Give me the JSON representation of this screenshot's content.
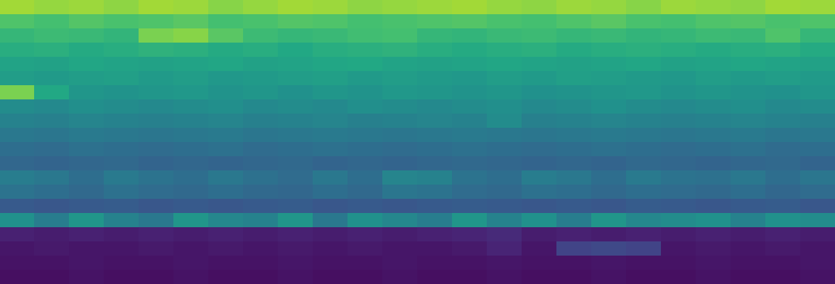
{
  "chart_data": {
    "type": "heatmap",
    "tick_labels": false,
    "color_range": [
      0,
      1
    ],
    "cells": [
      [
        0.86,
        0.84,
        0.85,
        0.83,
        0.86,
        0.85,
        0.82,
        0.84,
        0.86,
        0.85,
        0.83,
        0.84,
        0.85,
        0.86,
        0.84,
        0.83,
        0.85,
        0.84,
        0.82,
        0.85,
        0.84,
        0.83,
        0.86,
        0.85
      ],
      [
        0.72,
        0.7,
        0.73,
        0.71,
        0.72,
        0.74,
        0.7,
        0.71,
        0.73,
        0.72,
        0.7,
        0.71,
        0.72,
        0.73,
        0.71,
        0.7,
        0.72,
        0.74,
        0.71,
        0.7,
        0.72,
        0.73,
        0.71,
        0.72
      ],
      [
        0.66,
        0.68,
        0.67,
        0.65,
        0.8,
        0.82,
        0.74,
        0.68,
        0.66,
        0.67,
        0.69,
        0.7,
        0.66,
        0.65,
        0.67,
        0.68,
        0.66,
        0.67,
        0.65,
        0.66,
        0.68,
        0.67,
        0.72,
        0.66
      ],
      [
        0.62,
        0.63,
        0.61,
        0.62,
        0.64,
        0.63,
        0.61,
        0.62,
        0.6,
        0.62,
        0.63,
        0.64,
        0.62,
        0.61,
        0.62,
        0.63,
        0.61,
        0.62,
        0.63,
        0.62,
        0.61,
        0.62,
        0.63,
        0.61
      ],
      [
        0.58,
        0.57,
        0.59,
        0.58,
        0.57,
        0.58,
        0.59,
        0.57,
        0.58,
        0.59,
        0.6,
        0.58,
        0.57,
        0.58,
        0.59,
        0.58,
        0.57,
        0.58,
        0.59,
        0.57,
        0.58,
        0.59,
        0.58,
        0.57
      ],
      [
        0.55,
        0.54,
        0.55,
        0.56,
        0.54,
        0.55,
        0.53,
        0.54,
        0.55,
        0.56,
        0.54,
        0.55,
        0.54,
        0.53,
        0.55,
        0.54,
        0.56,
        0.55,
        0.54,
        0.53,
        0.55,
        0.54,
        0.55,
        0.54
      ],
      [
        0.8,
        0.6,
        0.52,
        0.51,
        0.52,
        0.53,
        0.51,
        0.52,
        0.5,
        0.52,
        0.51,
        0.53,
        0.52,
        0.51,
        0.52,
        0.5,
        0.51,
        0.52,
        0.53,
        0.51,
        0.52,
        0.51,
        0.5,
        0.52
      ],
      [
        0.48,
        0.47,
        0.49,
        0.48,
        0.47,
        0.48,
        0.49,
        0.47,
        0.48,
        0.47,
        0.49,
        0.48,
        0.47,
        0.48,
        0.49,
        0.47,
        0.48,
        0.5,
        0.48,
        0.47,
        0.48,
        0.49,
        0.47,
        0.48
      ],
      [
        0.44,
        0.43,
        0.45,
        0.44,
        0.43,
        0.44,
        0.45,
        0.43,
        0.44,
        0.45,
        0.43,
        0.44,
        0.45,
        0.44,
        0.48,
        0.43,
        0.44,
        0.45,
        0.44,
        0.43,
        0.44,
        0.45,
        0.44,
        0.43
      ],
      [
        0.4,
        0.39,
        0.41,
        0.4,
        0.39,
        0.4,
        0.41,
        0.39,
        0.4,
        0.41,
        0.4,
        0.39,
        0.4,
        0.41,
        0.4,
        0.39,
        0.4,
        0.41,
        0.4,
        0.39,
        0.4,
        0.41,
        0.39,
        0.4
      ],
      [
        0.36,
        0.35,
        0.37,
        0.36,
        0.35,
        0.36,
        0.37,
        0.35,
        0.36,
        0.37,
        0.36,
        0.35,
        0.36,
        0.37,
        0.36,
        0.35,
        0.36,
        0.37,
        0.36,
        0.35,
        0.36,
        0.37,
        0.35,
        0.36
      ],
      [
        0.33,
        0.32,
        0.33,
        0.34,
        0.32,
        0.33,
        0.32,
        0.33,
        0.34,
        0.32,
        0.33,
        0.32,
        0.33,
        0.34,
        0.33,
        0.32,
        0.33,
        0.32,
        0.34,
        0.33,
        0.32,
        0.33,
        0.34,
        0.32
      ],
      [
        0.42,
        0.4,
        0.36,
        0.41,
        0.38,
        0.36,
        0.4,
        0.37,
        0.35,
        0.4,
        0.36,
        0.45,
        0.44,
        0.38,
        0.36,
        0.42,
        0.4,
        0.36,
        0.41,
        0.38,
        0.37,
        0.4,
        0.36,
        0.39
      ],
      [
        0.38,
        0.36,
        0.34,
        0.37,
        0.35,
        0.34,
        0.36,
        0.34,
        0.33,
        0.36,
        0.34,
        0.39,
        0.38,
        0.35,
        0.34,
        0.37,
        0.36,
        0.34,
        0.36,
        0.35,
        0.34,
        0.36,
        0.33,
        0.35
      ],
      [
        0.28,
        0.27,
        0.28,
        0.29,
        0.27,
        0.28,
        0.27,
        0.28,
        0.29,
        0.27,
        0.28,
        0.27,
        0.28,
        0.29,
        0.28,
        0.27,
        0.28,
        0.27,
        0.29,
        0.28,
        0.27,
        0.28,
        0.29,
        0.27
      ],
      [
        0.5,
        0.42,
        0.52,
        0.44,
        0.4,
        0.52,
        0.46,
        0.44,
        0.52,
        0.4,
        0.5,
        0.46,
        0.42,
        0.52,
        0.44,
        0.5,
        0.42,
        0.52,
        0.46,
        0.48,
        0.5,
        0.44,
        0.5,
        0.48
      ],
      [
        0.09,
        0.08,
        0.09,
        0.08,
        0.09,
        0.08,
        0.09,
        0.08,
        0.09,
        0.08,
        0.09,
        0.08,
        0.09,
        0.1,
        0.12,
        0.08,
        0.09,
        0.08,
        0.09,
        0.08,
        0.09,
        0.08,
        0.09,
        0.08
      ],
      [
        0.06,
        0.07,
        0.06,
        0.06,
        0.07,
        0.06,
        0.07,
        0.06,
        0.07,
        0.06,
        0.07,
        0.06,
        0.06,
        0.07,
        0.1,
        0.06,
        0.2,
        0.22,
        0.2,
        0.06,
        0.07,
        0.06,
        0.07,
        0.06
      ],
      [
        0.05,
        0.05,
        0.06,
        0.05,
        0.05,
        0.06,
        0.05,
        0.05,
        0.06,
        0.05,
        0.05,
        0.06,
        0.05,
        0.05,
        0.06,
        0.05,
        0.05,
        0.06,
        0.05,
        0.05,
        0.06,
        0.05,
        0.05,
        0.06
      ],
      [
        0.04,
        0.04,
        0.05,
        0.04,
        0.04,
        0.05,
        0.04,
        0.04,
        0.05,
        0.04,
        0.04,
        0.05,
        0.04,
        0.04,
        0.05,
        0.04,
        0.04,
        0.05,
        0.04,
        0.04,
        0.05,
        0.04,
        0.04,
        0.05
      ]
    ]
  }
}
